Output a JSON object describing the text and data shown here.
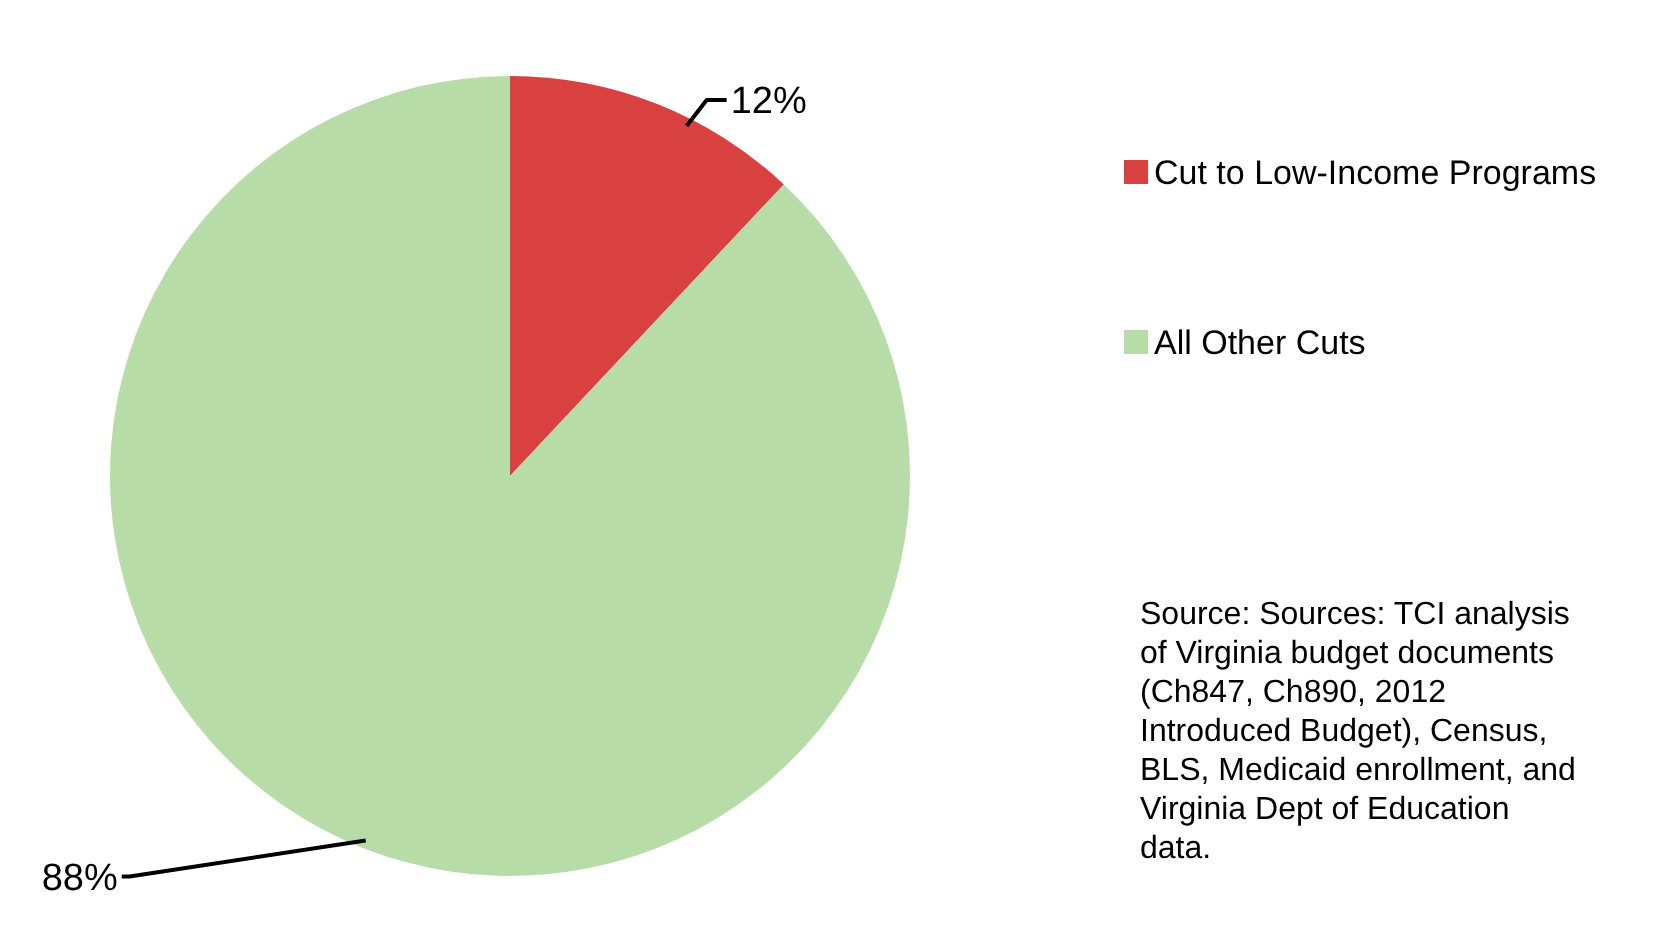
{
  "chart_data": {
    "type": "pie",
    "categories": [
      "Cut to Low-Income Programs",
      "All Other Cuts"
    ],
    "values": [
      12,
      88
    ],
    "colors": [
      "#d94040",
      "#b8dca8"
    ],
    "value_labels": [
      "12%",
      "88%"
    ],
    "legend": "right",
    "annotations": [
      "Source: Sources: TCI analysis of Virginia budget documents (Ch847, Ch890, 2012 Introduced Budget), Census, BLS, Medicaid enrollment, and Virginia Dept of Education data."
    ]
  }
}
